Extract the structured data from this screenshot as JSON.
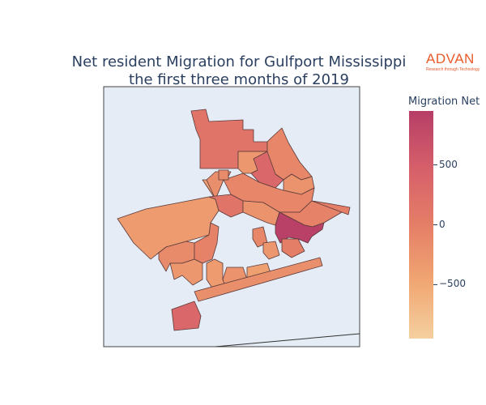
{
  "title_line1": "Net resident Migration for Gulfport Mississippi",
  "title_line2": "the first three months of 2019",
  "logo": {
    "name": "ADVAN",
    "tagline": "Research through Technology",
    "color": "#e85a2a"
  },
  "colorbar": {
    "title": "Migration Net",
    "range": [
      -950,
      950
    ],
    "ticks": [
      {
        "value": 500,
        "label": "500"
      },
      {
        "value": 0,
        "label": "0"
      },
      {
        "value": -500,
        "label": "−500"
      }
    ],
    "colors": [
      "#f5d0a0",
      "#f0a672",
      "#e57e67",
      "#d65f6a",
      "#b63e67"
    ]
  },
  "map_background": "#e5ecf6",
  "regions": [
    {
      "id": "r1",
      "value": 150
    },
    {
      "id": "r2",
      "value": -100
    },
    {
      "id": "r3",
      "value": -300
    },
    {
      "id": "r4",
      "value": 350
    },
    {
      "id": "r5",
      "value": -250
    },
    {
      "id": "r6",
      "value": -100
    },
    {
      "id": "r7",
      "value": -400
    },
    {
      "id": "r8",
      "value": -200
    },
    {
      "id": "r9",
      "value": -150
    },
    {
      "id": "r10",
      "value": -350
    },
    {
      "id": "r11",
      "value": 150
    },
    {
      "id": "r12",
      "value": -250
    },
    {
      "id": "r13",
      "value": -50
    },
    {
      "id": "r14",
      "value": 0
    },
    {
      "id": "r15",
      "value": 900
    },
    {
      "id": "r16",
      "value": -150
    },
    {
      "id": "r17",
      "value": -50
    },
    {
      "id": "r18",
      "value": -300
    },
    {
      "id": "r19",
      "value": -350
    },
    {
      "id": "r20",
      "value": -250
    },
    {
      "id": "r21",
      "value": -400
    },
    {
      "id": "r22",
      "value": -200
    },
    {
      "id": "r23",
      "value": -100
    },
    {
      "id": "r24",
      "value": -300
    },
    {
      "id": "r25",
      "value": 0
    },
    {
      "id": "r26",
      "value": 350
    }
  ]
}
